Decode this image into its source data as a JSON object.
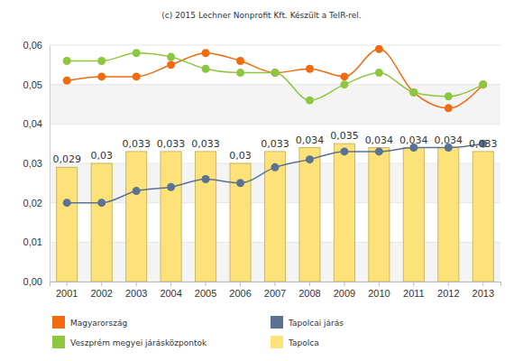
{
  "chart_data": {
    "type": "bar",
    "title": "(c) 2015 Lechner Nonprofit Kft. Készült a TeIR-rel.",
    "categories": [
      "2001",
      "2002",
      "2003",
      "2004",
      "2005",
      "2006",
      "2007",
      "2008",
      "2009",
      "2010",
      "2011",
      "2012",
      "2013"
    ],
    "ylim": [
      0,
      0.06
    ],
    "yticks": [
      {
        "value": 0,
        "label": "0,00"
      },
      {
        "value": 0.01,
        "label": "0,01"
      },
      {
        "value": 0.02,
        "label": "0,02"
      },
      {
        "value": 0.03,
        "label": "0,03"
      },
      {
        "value": 0.04,
        "label": "0,04"
      },
      {
        "value": 0.05,
        "label": "0,05"
      },
      {
        "value": 0.06,
        "label": "0,06"
      }
    ],
    "grid": true,
    "legend": "bottom",
    "series": [
      {
        "name": "Magyarország",
        "type": "line",
        "color": "#f26b0f",
        "marker": "circle",
        "line_style": "smooth",
        "values": [
          0.051,
          0.052,
          0.052,
          0.055,
          0.058,
          0.056,
          0.053,
          0.054,
          0.052,
          0.059,
          0.048,
          0.044,
          0.05
        ]
      },
      {
        "name": "Tapolcai járás",
        "type": "line",
        "color": "#5b7392",
        "marker": "circle",
        "line_style": "smooth",
        "values": [
          0.02,
          0.02,
          0.023,
          0.024,
          0.026,
          0.025,
          0.029,
          0.031,
          0.033,
          0.033,
          0.034,
          0.034,
          0.035
        ]
      },
      {
        "name": "Veszprém megyei járásközpontok",
        "type": "line",
        "color": "#8dc63f",
        "marker": "circle",
        "line_style": "smooth",
        "values": [
          0.056,
          0.056,
          0.058,
          0.057,
          0.054,
          0.053,
          0.053,
          0.046,
          0.05,
          0.053,
          0.048,
          0.047,
          0.05
        ]
      },
      {
        "name": "Tapolca",
        "type": "bar",
        "color": "#fde27a",
        "data_labels": true,
        "values": [
          0.029,
          0.03,
          0.033,
          0.033,
          0.033,
          0.03,
          0.033,
          0.034,
          0.035,
          0.034,
          0.034,
          0.034,
          0.033
        ],
        "value_labels": [
          "0,029",
          "0,03",
          "0,033",
          "0,033",
          "0,033",
          "0,03",
          "0,033",
          "0,034",
          "0,035",
          "0,034",
          "0,034",
          "0,034",
          "0,033"
        ]
      }
    ]
  }
}
